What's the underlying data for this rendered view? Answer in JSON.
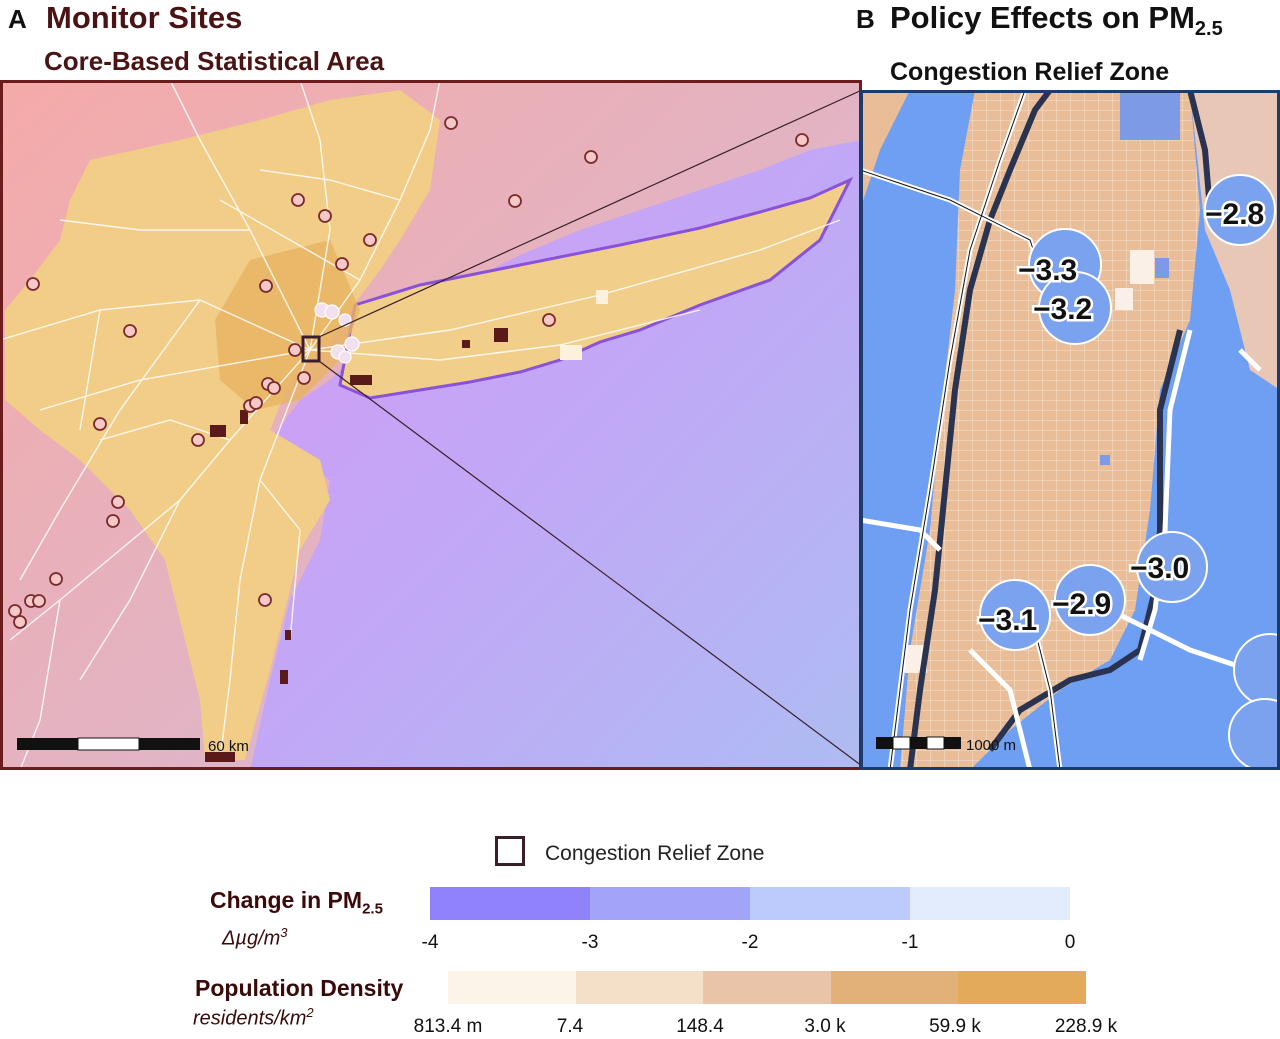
{
  "panel_a": {
    "letter": "A",
    "title": "Monitor Sites",
    "subtitle": "Core-Based  Statistical Area",
    "scale_label": "60 km"
  },
  "panel_b": {
    "letter": "B",
    "title": "Policy Effects on PM",
    "title_sub": "2.5",
    "subtitle": "Congestion Relief Zone",
    "scale_label": "1000 m",
    "site_values": [
      "−2.8",
      "−3.3",
      "−3.2",
      "−3.0",
      "−2.9",
      "−3.1"
    ]
  },
  "legend": {
    "crz_label": "Congestion Relief Zone",
    "pm_title": "Change in PM",
    "pm_title_sub": "2.5",
    "pm_unit": "Δµg/m",
    "pm_unit_sup": "3",
    "pm_ticks": [
      "-4",
      "-3",
      "-2",
      "-1",
      "0"
    ],
    "pm_colors": [
      "#8f82fb",
      "#a3a3fa",
      "#bccbfb",
      "#e3ecfd"
    ],
    "pop_title": "Population Density",
    "pop_unit": "residents/km",
    "pop_unit_sup": "2",
    "pop_ticks": [
      "813.4 m",
      "7.4",
      "148.4",
      "3.0 k",
      "59.9 k",
      "228.9 k"
    ],
    "pop_colors": [
      "#fbf4e9",
      "#f4dfc8",
      "#eac4a8",
      "#e2b079",
      "#e3aa5a"
    ]
  },
  "colors": {
    "zone_outline": "#3a1e2a",
    "site_fill": "#7aa2ee",
    "water_b": "#6f9ff2",
    "panel_a_border": "#6b1c1c",
    "panel_b_border": "#1e3b6b"
  }
}
